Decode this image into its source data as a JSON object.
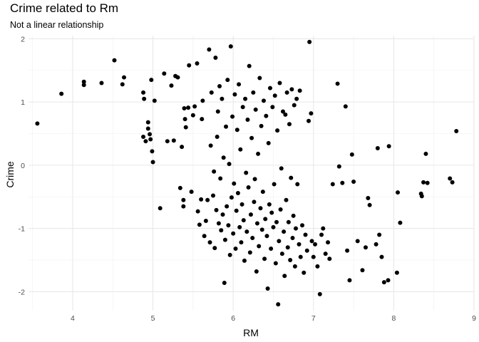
{
  "chart_data": {
    "type": "scatter",
    "title": "Crime related to Rm",
    "subtitle": "Not a linear relationship",
    "xlabel": "RM",
    "ylabel": "Crime",
    "xlim": [
      3.45,
      9.0
    ],
    "ylim": [
      -2.3,
      2.05
    ],
    "xticks": [
      4,
      5,
      6,
      7,
      8,
      9
    ],
    "yticks": [
      -2,
      -1,
      0,
      1,
      2
    ],
    "grid": true,
    "legend": "none",
    "point_color": "#000000",
    "points": [
      [
        3.56,
        0.66
      ],
      [
        3.86,
        1.13
      ],
      [
        4.14,
        1.27
      ],
      [
        4.14,
        1.32
      ],
      [
        4.36,
        1.3
      ],
      [
        4.52,
        1.66
      ],
      [
        4.62,
        1.28
      ],
      [
        4.64,
        1.39
      ],
      [
        4.88,
        1.15
      ],
      [
        4.89,
        1.05
      ],
      [
        4.88,
        0.45
      ],
      [
        4.91,
        0.38
      ],
      [
        4.94,
        0.68
      ],
      [
        4.94,
        0.58
      ],
      [
        4.96,
        0.49
      ],
      [
        4.97,
        0.41
      ],
      [
        4.98,
        1.35
      ],
      [
        4.99,
        0.22
      ],
      [
        5.0,
        0.05
      ],
      [
        5.02,
        1.02
      ],
      [
        5.09,
        -0.68
      ],
      [
        5.14,
        1.45
      ],
      [
        5.18,
        0.38
      ],
      [
        5.23,
        1.26
      ],
      [
        5.26,
        0.39
      ],
      [
        5.28,
        1.41
      ],
      [
        5.31,
        1.39
      ],
      [
        5.34,
        -0.36
      ],
      [
        5.36,
        0.29
      ],
      [
        5.38,
        -0.55
      ],
      [
        5.38,
        -0.65
      ],
      [
        5.39,
        0.9
      ],
      [
        5.4,
        0.73
      ],
      [
        5.41,
        0.6
      ],
      [
        5.44,
        0.91
      ],
      [
        5.45,
        1.58
      ],
      [
        5.48,
        -0.42
      ],
      [
        5.5,
        0.79
      ],
      [
        5.52,
        0.93
      ],
      [
        5.55,
        1.61
      ],
      [
        5.56,
        -0.73
      ],
      [
        5.58,
        -0.94
      ],
      [
        5.6,
        -0.54
      ],
      [
        5.61,
        0.73
      ],
      [
        5.62,
        1.02
      ],
      [
        5.64,
        -1.12
      ],
      [
        5.66,
        -0.88
      ],
      [
        5.68,
        -0.55
      ],
      [
        5.7,
        1.83
      ],
      [
        5.71,
        -1.22
      ],
      [
        5.72,
        0.31
      ],
      [
        5.73,
        1.15
      ],
      [
        5.75,
        -0.48
      ],
      [
        5.76,
        -0.1
      ],
      [
        5.77,
        -1.31
      ],
      [
        5.78,
        1.7
      ],
      [
        5.79,
        -0.71
      ],
      [
        5.8,
        0.45
      ],
      [
        5.81,
        0.85
      ],
      [
        5.82,
        -0.92
      ],
      [
        5.83,
        1.25
      ],
      [
        5.84,
        -0.21
      ],
      [
        5.85,
        -1.03
      ],
      [
        5.86,
        1.05
      ],
      [
        5.87,
        -0.78
      ],
      [
        5.88,
        0.12
      ],
      [
        5.89,
        -1.86
      ],
      [
        5.9,
        -1.18
      ],
      [
        5.91,
        0.61
      ],
      [
        5.92,
        -0.65
      ],
      [
        5.93,
        1.35
      ],
      [
        5.94,
        -0.95
      ],
      [
        5.95,
        0.02
      ],
      [
        5.96,
        -1.42
      ],
      [
        5.97,
        1.88
      ],
      [
        5.98,
        -0.51
      ],
      [
        5.99,
        0.77
      ],
      [
        6.0,
        -1.08
      ],
      [
        6.01,
        -0.29
      ],
      [
        6.02,
        1.12
      ],
      [
        6.03,
        -1.32
      ],
      [
        6.04,
        -0.72
      ],
      [
        6.05,
        0.56
      ],
      [
        6.06,
        -0.44
      ],
      [
        6.07,
        1.28
      ],
      [
        6.08,
        -0.98
      ],
      [
        6.09,
        0.25
      ],
      [
        6.1,
        -1.22
      ],
      [
        6.11,
        -0.62
      ],
      [
        6.12,
        0.92
      ],
      [
        6.13,
        -0.87
      ],
      [
        6.14,
        -1.51
      ],
      [
        6.15,
        1.05
      ],
      [
        6.16,
        -0.12
      ],
      [
        6.17,
        -1.05
      ],
      [
        6.18,
        0.72
      ],
      [
        6.19,
        -0.35
      ],
      [
        6.2,
        1.57
      ],
      [
        6.21,
        -1.38
      ],
      [
        6.22,
        -0.78
      ],
      [
        6.23,
        0.43
      ],
      [
        6.24,
        -1.15
      ],
      [
        6.25,
        1.15
      ],
      [
        6.26,
        -0.58
      ],
      [
        6.27,
        -0.22
      ],
      [
        6.28,
        0.88
      ],
      [
        6.29,
        -1.68
      ],
      [
        6.3,
        -0.92
      ],
      [
        6.31,
        0.18
      ],
      [
        6.32,
        -1.28
      ],
      [
        6.33,
        1.38
      ],
      [
        6.34,
        -0.68
      ],
      [
        6.35,
        0.62
      ],
      [
        6.36,
        -1.02
      ],
      [
        6.37,
        -0.42
      ],
      [
        6.38,
        1.02
      ],
      [
        6.39,
        -1.48
      ],
      [
        6.4,
        -0.85
      ],
      [
        6.41,
        0.78
      ],
      [
        6.42,
        -1.12
      ],
      [
        6.43,
        -1.95
      ],
      [
        6.44,
        0.35
      ],
      [
        6.45,
        -0.62
      ],
      [
        6.46,
        1.22
      ],
      [
        6.47,
        -1.32
      ],
      [
        6.48,
        -0.75
      ],
      [
        6.49,
        0.92
      ],
      [
        6.5,
        -0.98
      ],
      [
        6.51,
        -0.3
      ],
      [
        6.52,
        1.1
      ],
      [
        6.53,
        -1.55
      ],
      [
        6.54,
        -0.9
      ],
      [
        6.55,
        0.55
      ],
      [
        6.56,
        -2.2
      ],
      [
        6.57,
        -1.2
      ],
      [
        6.58,
        1.3
      ],
      [
        6.59,
        -0.7
      ],
      [
        6.6,
        -0.05
      ],
      [
        6.61,
        -1.4
      ],
      [
        6.62,
        0.85
      ],
      [
        6.63,
        -1.05
      ],
      [
        6.64,
        -1.75
      ],
      [
        6.65,
        0.8
      ],
      [
        6.66,
        -0.55
      ],
      [
        6.67,
        1.15
      ],
      [
        6.68,
        -1.3
      ],
      [
        6.69,
        -0.9
      ],
      [
        6.7,
        0.65
      ],
      [
        6.71,
        -1.5
      ],
      [
        6.72,
        -0.2
      ],
      [
        6.73,
        1.2
      ],
      [
        6.74,
        -1.15
      ],
      [
        6.75,
        -0.8
      ],
      [
        6.76,
        0.95
      ],
      [
        6.77,
        -1.6
      ],
      [
        6.78,
        -1.0
      ],
      [
        6.79,
        1.05
      ],
      [
        6.8,
        -0.3
      ],
      [
        6.82,
        -1.25
      ],
      [
        6.83,
        1.18
      ],
      [
        6.84,
        -1.45
      ],
      [
        6.86,
        -0.95
      ],
      [
        6.88,
        -1.7
      ],
      [
        6.9,
        -1.1
      ],
      [
        6.92,
        -1.35
      ],
      [
        6.94,
        0.7
      ],
      [
        6.95,
        1.95
      ],
      [
        6.97,
        0.82
      ],
      [
        6.98,
        -1.2
      ],
      [
        7.0,
        -1.45
      ],
      [
        7.02,
        -1.25
      ],
      [
        7.05,
        -1.6
      ],
      [
        7.08,
        -2.04
      ],
      [
        7.1,
        -1.1
      ],
      [
        7.12,
        -1.0
      ],
      [
        7.15,
        -1.4
      ],
      [
        7.18,
        -1.22
      ],
      [
        7.2,
        -1.48
      ],
      [
        7.24,
        -0.3
      ],
      [
        7.3,
        1.29
      ],
      [
        7.32,
        -0.02
      ],
      [
        7.36,
        -0.28
      ],
      [
        7.4,
        0.93
      ],
      [
        7.42,
        -1.35
      ],
      [
        7.45,
        -1.82
      ],
      [
        7.48,
        0.17
      ],
      [
        7.5,
        -0.26
      ],
      [
        7.55,
        -1.2
      ],
      [
        7.61,
        -1.66
      ],
      [
        7.65,
        -1.3
      ],
      [
        7.68,
        -0.52
      ],
      [
        7.7,
        -0.63
      ],
      [
        7.78,
        -1.25
      ],
      [
        7.8,
        0.27
      ],
      [
        7.82,
        -1.1
      ],
      [
        7.85,
        -1.45
      ],
      [
        7.88,
        -1.85
      ],
      [
        7.94,
        0.3
      ],
      [
        7.93,
        -1.82
      ],
      [
        8.04,
        -1.7
      ],
      [
        8.05,
        -0.43
      ],
      [
        8.08,
        -0.91
      ],
      [
        8.34,
        -0.45
      ],
      [
        8.35,
        -0.49
      ],
      [
        8.37,
        -0.27
      ],
      [
        8.4,
        0.18
      ],
      [
        8.42,
        -0.28
      ],
      [
        8.7,
        -0.21
      ],
      [
        8.73,
        -0.27
      ],
      [
        8.78,
        0.54
      ]
    ]
  }
}
